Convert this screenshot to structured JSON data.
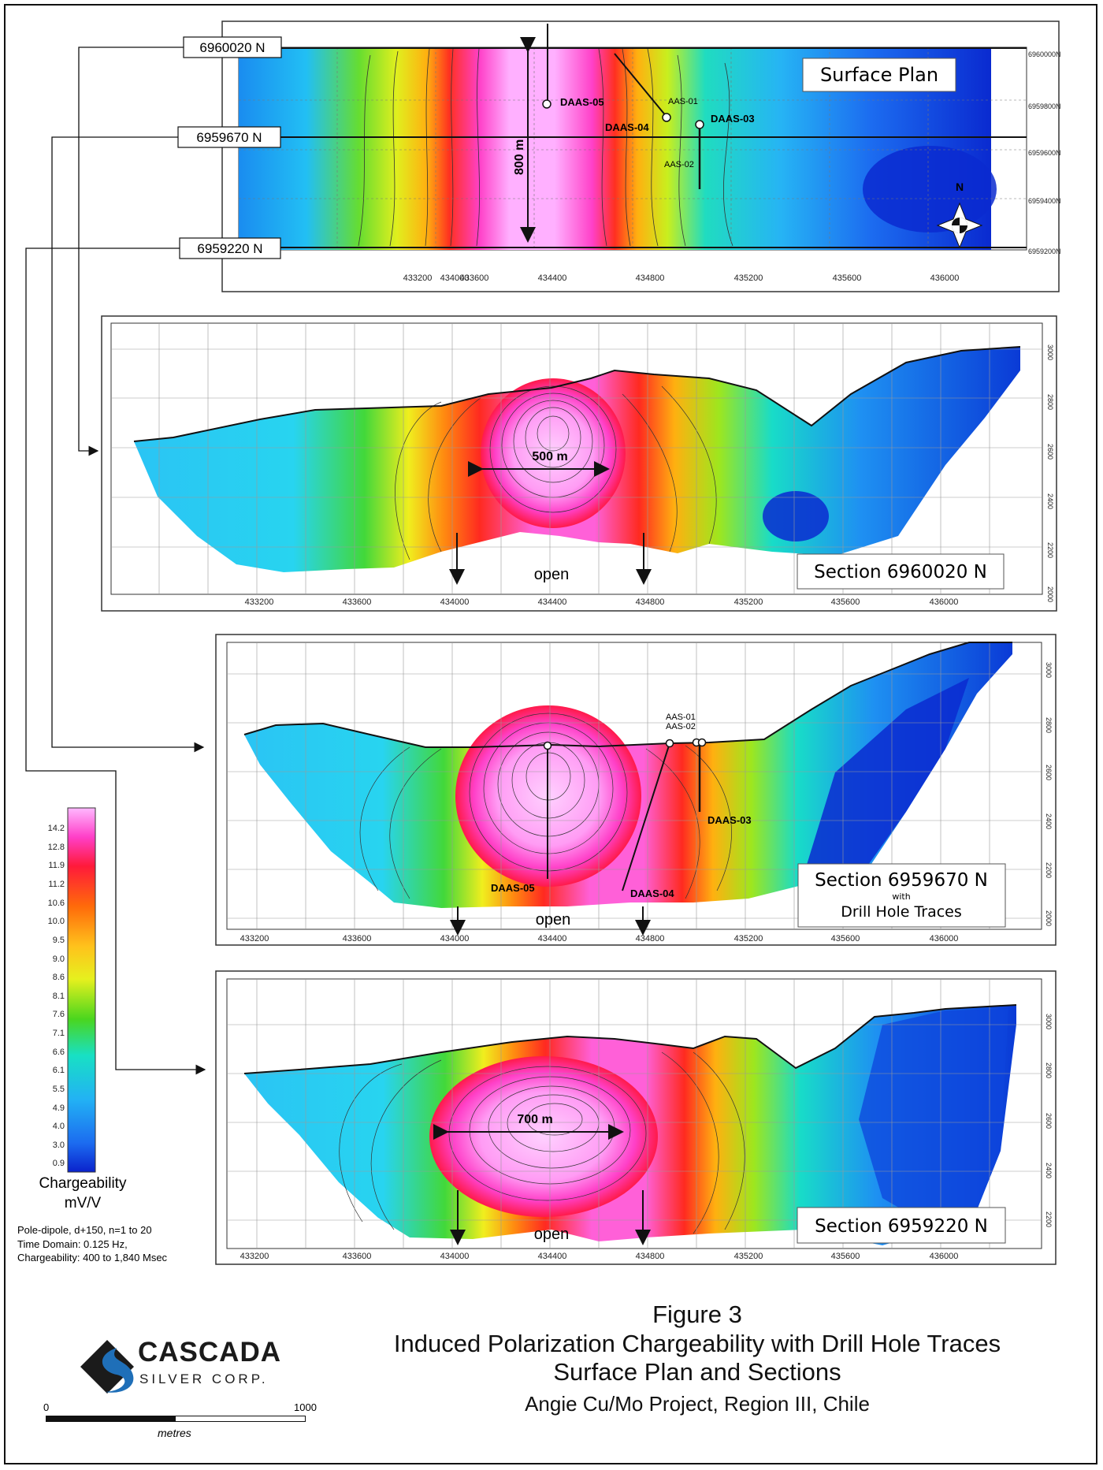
{
  "surface_plan": {
    "title": "Surface Plan",
    "northing_labels": [
      "6960020 N",
      "6959670 N",
      "6959220 N"
    ],
    "right_axis_labels": [
      "6960000N",
      "6959800N",
      "6959600N",
      "6959400N",
      "6959200N"
    ],
    "x_axis_labels": [
      "433200",
      "433600",
      "434000",
      "434400",
      "434800",
      "435200",
      "435600",
      "436000"
    ],
    "dimension_label": "800 m",
    "north_label": "N",
    "drill_labels": {
      "daas05": "DAAS-05",
      "daas04": "DAAS-04",
      "daas03": "DAAS-03",
      "aas01": "AAS-01",
      "aas02": "AAS-02"
    }
  },
  "section1": {
    "title": "Section 6960020 N",
    "dimension_label": "500 m",
    "open_label": "open",
    "x_axis_labels": [
      "433200",
      "433600",
      "434000",
      "434400",
      "434800",
      "435200",
      "435600",
      "436000"
    ],
    "elev_labels": [
      "3000",
      "2800",
      "2600",
      "2400",
      "2200",
      "2000"
    ]
  },
  "section2": {
    "title": "Section 6959670 N",
    "title_with": "with",
    "title_line3": "Drill Hole Traces",
    "open_label": "open",
    "x_axis_labels": [
      "433200",
      "433600",
      "434000",
      "434400",
      "434800",
      "435200",
      "435600",
      "436000"
    ],
    "elev_labels": [
      "3000",
      "2800",
      "2600",
      "2400",
      "2200",
      "2000"
    ],
    "drill_labels": {
      "daas05": "DAAS-05",
      "daas04": "DAAS-04",
      "daas03": "DAAS-03",
      "aas01": "AAS-01",
      "aas02": "AAS-02"
    }
  },
  "section3": {
    "title": "Section 6959220 N",
    "dimension_label": "700 m",
    "open_label": "open",
    "x_axis_labels": [
      "433200",
      "433600",
      "434000",
      "434400",
      "434800",
      "435200",
      "435600",
      "436000"
    ],
    "elev_labels": [
      "3000",
      "2800",
      "2600",
      "2400",
      "2200"
    ]
  },
  "legend": {
    "values": [
      "14.2",
      "12.8",
      "11.9",
      "11.2",
      "10.6",
      "10.0",
      "9.5",
      "9.0",
      "8.6",
      "8.1",
      "7.6",
      "7.1",
      "6.6",
      "6.1",
      "5.5",
      "4.9",
      "4.0",
      "3.0",
      "0.9"
    ],
    "colors": [
      "#ffb8ff",
      "#ff8cf0",
      "#ff1aa8",
      "#ff1a3a",
      "#ff2a14",
      "#ff5c0a",
      "#ff8a0a",
      "#ffae10",
      "#ffd21c",
      "#f5f01e",
      "#c6f01e",
      "#8ee61e",
      "#3ed61e",
      "#12d65a",
      "#18e0c4",
      "#28d4f4",
      "#22b2f4",
      "#1c7cf0",
      "#0a2ad8"
    ],
    "title_line1": "Chargeability",
    "title_line2": "mV/V",
    "notes": [
      "Pole-dipole, d+150,  n=1 to 20",
      "Time Domain: 0.125 Hz,",
      "Chargeability: 400 to 1,840 Msec"
    ]
  },
  "figure": {
    "number": "Figure 3",
    "title": "Induced Polarization Chargeability with Drill Hole Traces",
    "subtitle": "Surface Plan and Sections",
    "project": "Angie Cu/Mo Project, Region III, Chile"
  },
  "logo": {
    "name": "CASCADA",
    "sub": "SILVER CORP."
  },
  "scale": {
    "start": "0",
    "end": "1000",
    "unit": "metres"
  }
}
